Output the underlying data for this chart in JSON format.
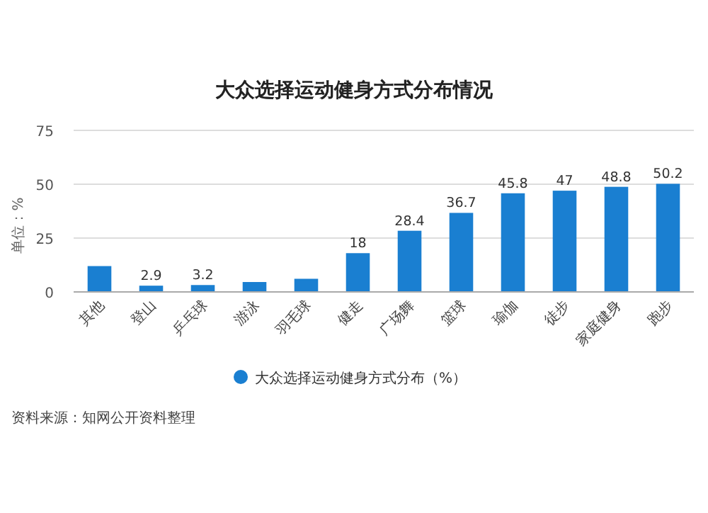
{
  "chart_data": {
    "type": "bar",
    "title": "大众选择运动健身方式分布情况",
    "ylabel": "单位：%",
    "categories": [
      "其他",
      "登山",
      "乒乓球",
      "游泳",
      "羽毛球",
      "健走",
      "广场舞",
      "篮球",
      "瑜伽",
      "徒步",
      "家庭健身",
      "跑步"
    ],
    "series": [
      {
        "name": "大众选择运动健身方式分布（%）",
        "color": "#1a7fd1",
        "values": [
          12,
          2.9,
          3.2,
          4.6,
          6.1,
          18,
          28.4,
          36.7,
          45.8,
          47,
          48.8,
          50.2
        ],
        "value_labels": [
          null,
          "2.9",
          "3.2",
          null,
          null,
          "18",
          "28.4",
          "36.7",
          "45.8",
          "47",
          "48.8",
          "50.2"
        ]
      }
    ],
    "ylim": [
      0,
      75
    ],
    "yticks": [
      0,
      25,
      50,
      75
    ],
    "grid": "y",
    "legend": "bottom",
    "annotations": [
      "资料来源：知网公开资料整理"
    ]
  }
}
